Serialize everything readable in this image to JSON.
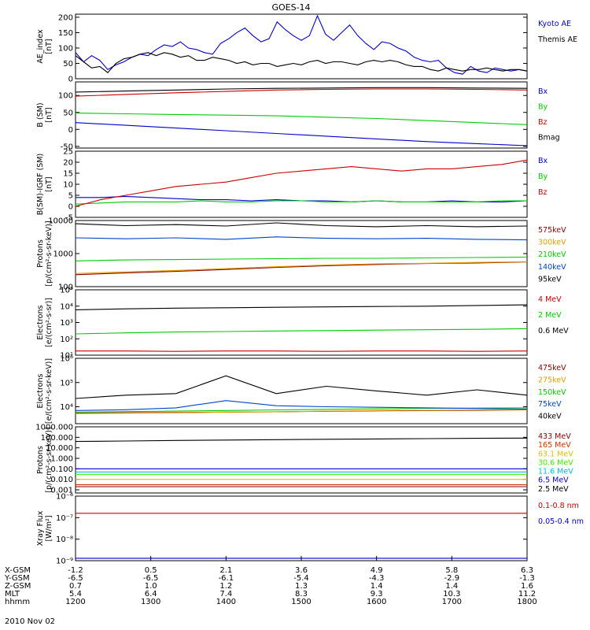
{
  "title": "GOES-14",
  "date": "2010 Nov 02",
  "chart_data": [
    {
      "type": "line",
      "ylabel": [
        "AE_index",
        "[nT]"
      ],
      "ylim": [
        0,
        210
      ],
      "log": false,
      "yticks": [
        "0",
        "50",
        "100",
        "150",
        "200"
      ],
      "ytick_values": [
        0,
        50,
        100,
        150,
        200
      ],
      "series": [
        {
          "name": "Kyoto AE",
          "color": "#0000cc",
          "values": [
            85,
            55,
            75,
            60,
            30,
            45,
            55,
            70,
            80,
            75,
            95,
            110,
            105,
            120,
            100,
            95,
            85,
            80,
            115,
            130,
            150,
            165,
            140,
            120,
            130,
            185,
            160,
            140,
            125,
            140,
            205,
            145,
            125,
            150,
            175,
            140,
            115,
            95,
            120,
            115,
            100,
            90,
            70,
            60,
            55,
            60,
            35,
            20,
            15,
            40,
            25,
            20,
            35,
            30,
            25,
            30,
            25
          ]
        },
        {
          "name": "Themis AE",
          "color": "#000000",
          "values": [
            75,
            55,
            35,
            40,
            20,
            50,
            65,
            70,
            80,
            85,
            75,
            85,
            80,
            70,
            75,
            60,
            60,
            70,
            65,
            60,
            50,
            55,
            45,
            50,
            50,
            40,
            45,
            50,
            45,
            55,
            60,
            50,
            55,
            55,
            50,
            45,
            55,
            60,
            55,
            60,
            55,
            45,
            40,
            40,
            30,
            25,
            35,
            30,
            25,
            30,
            30,
            35,
            30,
            25,
            30,
            30,
            25
          ]
        }
      ]
    },
    {
      "type": "line",
      "ylabel": [
        "B (SM)",
        "[nT]"
      ],
      "ylim": [
        -55,
        140
      ],
      "log": false,
      "yticks": [
        "-50",
        "0",
        "50",
        "100"
      ],
      "ytick_values": [
        -50,
        0,
        50,
        100
      ],
      "series": [
        {
          "name": "Bx",
          "color": "#0000cc",
          "values": [
            20,
            12,
            4,
            -4,
            -12,
            -20,
            -28,
            -36,
            -42,
            -48
          ]
        },
        {
          "name": "By",
          "color": "#00cc00",
          "values": [
            48,
            46,
            44,
            42,
            40,
            36,
            32,
            26,
            20,
            14
          ]
        },
        {
          "name": "Bz",
          "color": "#cc0000",
          "values": [
            98,
            103,
            108,
            112,
            116,
            118,
            119,
            119,
            118,
            116
          ]
        },
        {
          "name": "Bmag",
          "color": "#000000",
          "values": [
            110,
            113,
            116,
            119,
            121,
            122,
            123,
            123,
            122,
            121
          ]
        }
      ]
    },
    {
      "type": "line",
      "ylabel": [
        "B(SM)-IGRF (SM)",
        "[nT]"
      ],
      "ylim": [
        -5,
        25
      ],
      "log": false,
      "yticks": [
        "-5",
        "0",
        "5",
        "10",
        "15",
        "20",
        "25"
      ],
      "ytick_values": [
        -5,
        0,
        5,
        10,
        15,
        20,
        25
      ],
      "series": [
        {
          "name": "Bx",
          "color": "#0000cc",
          "values": [
            4,
            4,
            4.5,
            4,
            3.5,
            3,
            3,
            2.5,
            3,
            2.5,
            2.5,
            2,
            2.5,
            2,
            2,
            2.5,
            2,
            2,
            2.5
          ]
        },
        {
          "name": "By",
          "color": "#00cc00",
          "values": [
            1,
            1.5,
            2,
            2,
            2,
            2.5,
            2,
            2,
            2.5,
            2.5,
            2,
            2,
            2.5,
            2,
            2,
            2,
            2,
            2.5,
            2.5
          ]
        },
        {
          "name": "Bz",
          "color": "#cc0000",
          "values": [
            0,
            3,
            5,
            7,
            9,
            10,
            11,
            13,
            15,
            16,
            17,
            18,
            17,
            16,
            17,
            17,
            18,
            19,
            21
          ]
        }
      ]
    },
    {
      "type": "line",
      "ylabel": [
        "Protons",
        "[p/(cm²-s-sr-keV)]"
      ],
      "ylim": [
        100,
        10000
      ],
      "log": true,
      "yticks": [
        "100",
        "1000",
        "10000"
      ],
      "ytick_values": [
        100,
        1000,
        10000
      ],
      "series": [
        {
          "name": "575keV",
          "color": "#8b0000",
          "values": [
            230,
            260,
            290,
            330,
            380,
            430,
            470,
            500,
            520,
            560
          ]
        },
        {
          "name": "300keV",
          "color": "#e0a000",
          "values": [
            250,
            280,
            310,
            350,
            400,
            450,
            490,
            510,
            540,
            570
          ]
        },
        {
          "name": "210keV",
          "color": "#00cc00",
          "values": [
            600,
            640,
            660,
            680,
            700,
            720,
            720,
            740,
            760,
            780
          ]
        },
        {
          "name": "140keV",
          "color": "#0044cc",
          "values": [
            3000,
            2800,
            3000,
            2700,
            3200,
            2900,
            2800,
            2900,
            2700,
            2600
          ]
        },
        {
          "name": "95keV",
          "color": "#000000",
          "values": [
            8000,
            7000,
            7500,
            6800,
            8500,
            7000,
            6500,
            7000,
            6500,
            6800
          ]
        }
      ]
    },
    {
      "type": "line",
      "ylabel": [
        "Electrons",
        "[e/(cm²-s-sr)]"
      ],
      "ylim": [
        10,
        100000
      ],
      "log": true,
      "yticks": [
        "10¹",
        "10²",
        "10³",
        "10⁴",
        "10⁵"
      ],
      "ytick_values": [
        10,
        100,
        1000,
        10000,
        100000
      ],
      "series": [
        {
          "name": "4 MeV",
          "color": "#cc0000",
          "values": [
            18,
            18,
            17,
            18,
            18,
            17,
            18,
            18,
            17,
            18
          ]
        },
        {
          "name": "2 MeV",
          "color": "#00cc00",
          "values": [
            200,
            230,
            260,
            280,
            300,
            320,
            340,
            360,
            380,
            420
          ]
        },
        {
          "name": "0.6 MeV",
          "color": "#000000",
          "values": [
            6000,
            6800,
            7500,
            8000,
            8500,
            9000,
            9500,
            10000,
            11000,
            12000
          ]
        }
      ]
    },
    {
      "type": "line",
      "ylabel": [
        "Electrons",
        "[e/(cm²-s-sr-keV)]"
      ],
      "ylim": [
        2000,
        1000000
      ],
      "log": true,
      "yticks": [
        "10⁴",
        "10⁵",
        "10⁶"
      ],
      "ytick_values": [
        10000,
        100000,
        1000000
      ],
      "series": [
        {
          "name": "475keV",
          "color": "#8b0000",
          "values": [
            5500,
            5600,
            5800,
            6000,
            6200,
            6500,
            6800,
            7000,
            7200,
            7400
          ]
        },
        {
          "name": "275keV",
          "color": "#e0a000",
          "values": [
            5200,
            5400,
            5600,
            6000,
            6200,
            6600,
            7000,
            7200,
            7400,
            7600
          ]
        },
        {
          "name": "150keV",
          "color": "#00cc00",
          "values": [
            6000,
            6300,
            6600,
            7000,
            7400,
            7800,
            8200,
            8600,
            8800,
            9000
          ]
        },
        {
          "name": "75keV",
          "color": "#0044cc",
          "values": [
            7000,
            7500,
            9000,
            18000,
            11000,
            10000,
            9500,
            9000,
            8500,
            8000
          ]
        },
        {
          "name": "40keV",
          "color": "#000000",
          "values": [
            22000,
            30000,
            35000,
            190000,
            35000,
            70000,
            45000,
            30000,
            50000,
            30000
          ]
        }
      ]
    },
    {
      "type": "line",
      "ylabel": [
        "Protons",
        "[p/(cm²-s-sr-keV)]"
      ],
      "ylim": [
        0.0005,
        1000
      ],
      "log": true,
      "yticks": [
        "0.001",
        "0.010",
        "0.100",
        "1.000",
        "10.000",
        "100.000",
        "1000.000"
      ],
      "ytick_values": [
        0.001,
        0.01,
        0.1,
        1,
        10,
        100,
        1000
      ],
      "series": [
        {
          "name": "433 MeV",
          "color": "#8b0000",
          "values": [
            0.002,
            0.002,
            0.002,
            0.002,
            0.002,
            0.002,
            0.002,
            0.002,
            0.002,
            0.002
          ]
        },
        {
          "name": "165 MeV",
          "color": "#cc3300",
          "values": [
            0.003,
            0.003,
            0.003,
            0.003,
            0.003,
            0.003,
            0.003,
            0.003,
            0.003,
            0.003
          ]
        },
        {
          "name": "63.1 MeV",
          "color": "#e0c000",
          "values": [
            0.01,
            0.01,
            0.01,
            0.01,
            0.01,
            0.01,
            0.01,
            0.01,
            0.01,
            0.01
          ]
        },
        {
          "name": "30.6 MeV",
          "color": "#44ee00",
          "values": [
            0.03,
            0.03,
            0.03,
            0.03,
            0.03,
            0.03,
            0.03,
            0.03,
            0.03,
            0.03
          ]
        },
        {
          "name": "11.6 MeV",
          "color": "#00bbdd",
          "values": [
            0.05,
            0.05,
            0.05,
            0.05,
            0.05,
            0.05,
            0.05,
            0.05,
            0.05,
            0.05
          ]
        },
        {
          "name": "6.5 MeV",
          "color": "#0000cc",
          "values": [
            0.1,
            0.1,
            0.1,
            0.1,
            0.1,
            0.1,
            0.1,
            0.1,
            0.1,
            0.1
          ]
        },
        {
          "name": "2.5 MeV",
          "color": "#000000",
          "values": [
            40,
            45,
            50,
            55,
            60,
            65,
            70,
            75,
            80,
            85
          ]
        }
      ]
    },
    {
      "type": "line",
      "ylabel": [
        "Xray Flux",
        "[W/m²]"
      ],
      "ylim": [
        1e-09,
        1e-06
      ],
      "log": true,
      "yticks": [
        "10⁻⁹",
        "10⁻⁸",
        "10⁻⁷",
        "10⁻⁶"
      ],
      "ytick_values": [
        1e-09,
        1e-08,
        1e-07,
        1e-06
      ],
      "series": [
        {
          "name": "0.1-0.8 nm",
          "color": "#cc0000",
          "values": [
            1.6e-07,
            1.6e-07,
            1.6e-07,
            1.6e-07,
            1.6e-07,
            1.6e-07,
            1.6e-07,
            1.6e-07,
            1.6e-07,
            1.6e-07
          ]
        },
        {
          "name": "0.05-0.4 nm",
          "color": "#0000cc",
          "values": [
            1.3e-09,
            1.3e-09,
            1.3e-09,
            1.3e-09,
            1.3e-09,
            1.3e-09,
            1.3e-09,
            1.3e-09,
            1.3e-09,
            1.3e-09
          ]
        }
      ]
    }
  ],
  "xaxis": {
    "row_labels": [
      "X-GSM",
      "Y-GSM",
      "Z-GSM",
      "MLT",
      "hhmm"
    ],
    "columns": [
      [
        "-1.2",
        "-6.5",
        "0.7",
        "5.4",
        "1200"
      ],
      [
        "0.5",
        "-6.5",
        "1.0",
        "6.4",
        "1300"
      ],
      [
        "2.1",
        "-6.1",
        "1.2",
        "7.4",
        "1400"
      ],
      [
        "3.6",
        "-5.4",
        "1.3",
        "8.3",
        "1500"
      ],
      [
        "4.9",
        "-4.3",
        "1.4",
        "9.3",
        "1600"
      ],
      [
        "5.8",
        "-2.9",
        "1.4",
        "10.3",
        "1700"
      ],
      [
        "6.3",
        "-1.3",
        "1.6",
        "11.2",
        "1800"
      ]
    ]
  }
}
